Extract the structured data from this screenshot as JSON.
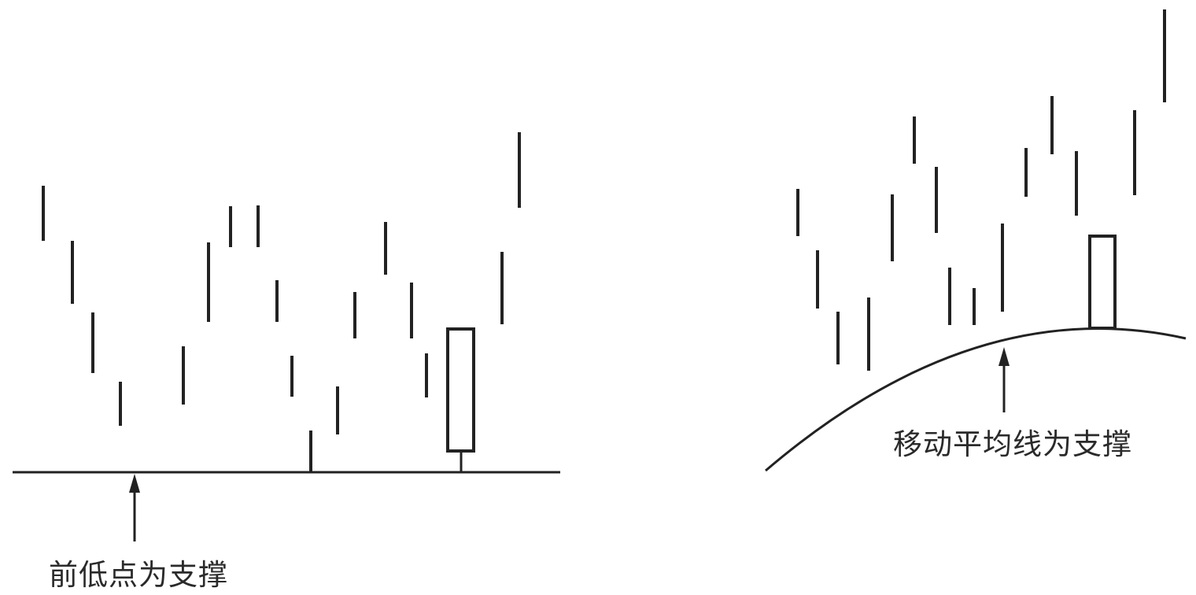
{
  "left_panel": {
    "label": "前低点为支撑"
  },
  "right_panel": {
    "label": "移动平均线为支撑"
  },
  "colors": {
    "ink": "#222222",
    "background": "#ffffff"
  }
}
